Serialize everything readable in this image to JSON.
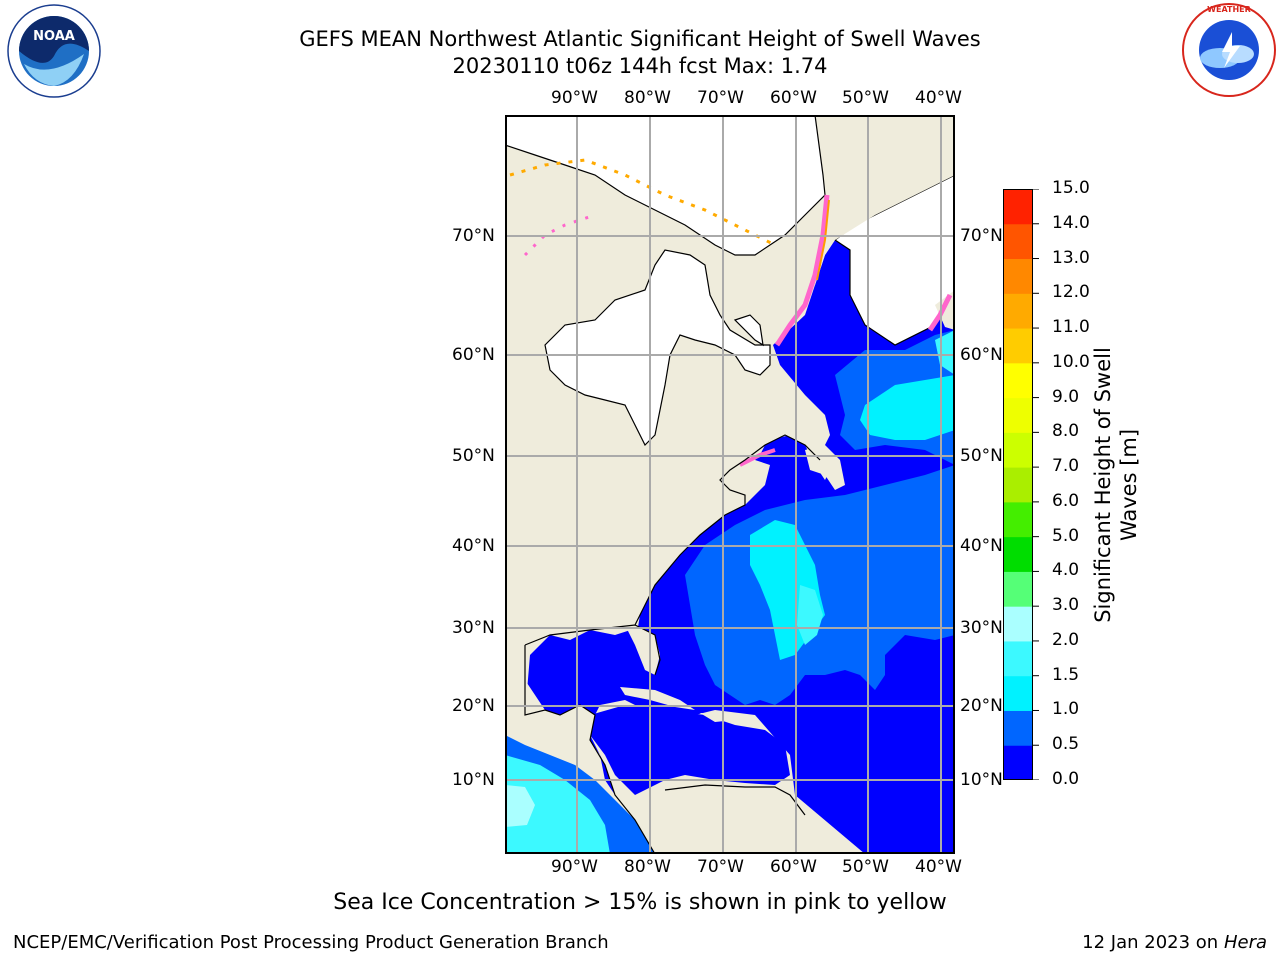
{
  "header": {
    "title_line1": "GEFS MEAN Northwest Atlantic Significant Height of Swell Waves",
    "title_line2": "20230110 t06z 144h fcst   Max: 1.74"
  },
  "logos": {
    "left": {
      "text": "NOAA",
      "ring_text": "NATIONAL OCEANIC AND ATMOSPHERIC ADMINISTRATION · U.S. DEPARTMENT OF COMMERCE"
    },
    "right": {
      "ring_text": "NATIONAL WEATHER SERVICE"
    }
  },
  "map": {
    "lon_labels": [
      "90°W",
      "80°W",
      "70°W",
      "60°W",
      "50°W",
      "40°W"
    ],
    "lat_labels": [
      "70°N",
      "60°N",
      "50°N",
      "40°N",
      "30°N",
      "20°N",
      "10°N"
    ],
    "colors": {
      "land": "#efecdc",
      "ice_land": "#ffffff",
      "grid": "#aaaaaa"
    }
  },
  "colorbar": {
    "label_line1": "Significant Height of Swell",
    "label_line2": "Waves [m]",
    "ticks": [
      "0.0",
      "0.5",
      "1.0",
      "1.5",
      "2.0",
      "3.0",
      "4.0",
      "5.0",
      "6.0",
      "7.0",
      "8.0",
      "9.0",
      "10.0",
      "11.0",
      "12.0",
      "13.0",
      "14.0",
      "15.0"
    ],
    "colors": [
      "#0000ff",
      "#0066ff",
      "#00f2ff",
      "#3cf9ff",
      "#aaffff",
      "#55ff77",
      "#00dd00",
      "#44ee00",
      "#aaee00",
      "#ccff00",
      "#eeff00",
      "#ffff00",
      "#ffcc00",
      "#ffaa00",
      "#ff8800",
      "#ff5500",
      "#ff2200"
    ]
  },
  "notes": {
    "ice": "Sea Ice Concentration > 15% is shown in pink to yellow"
  },
  "footer": {
    "left": "NCEP/EMC/Verification Post Processing Product Generation Branch",
    "right_prefix": "12 Jan 2023 on ",
    "right_host": "Hera"
  }
}
